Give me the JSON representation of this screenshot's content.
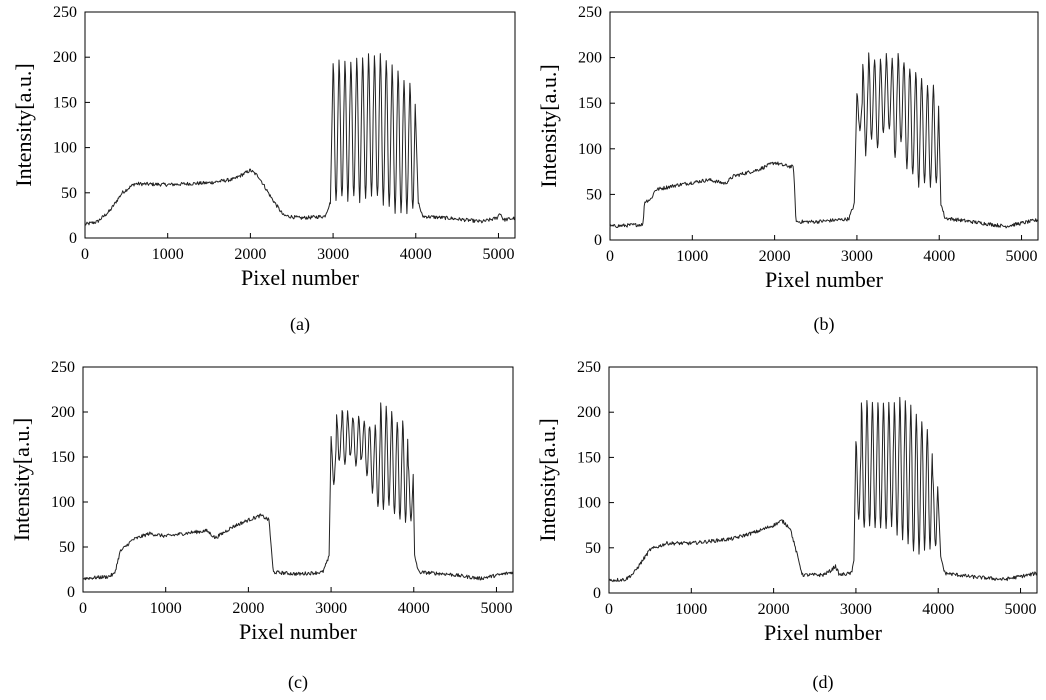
{
  "chart_data": [
    {
      "type": "line",
      "caption": "(a)",
      "xlabel": "Pixel number",
      "ylabel": "Intensity[a.u.]",
      "xlim": [
        0,
        5200
      ],
      "ylim": [
        0,
        250
      ],
      "xticks": [
        0,
        1000,
        2000,
        3000,
        4000,
        5000
      ],
      "yticks": [
        0,
        50,
        100,
        150,
        200,
        250
      ],
      "grid": false,
      "series": [
        {
          "color": "#222222",
          "envelope": [
            [
              0,
              15
            ],
            [
              150,
              18
            ],
            [
              300,
              30
            ],
            [
              450,
              50
            ],
            [
              600,
              60
            ],
            [
              1000,
              59
            ],
            [
              1500,
              61
            ],
            [
              1800,
              65
            ],
            [
              2000,
              75
            ],
            [
              2100,
              68
            ],
            [
              2250,
              45
            ],
            [
              2400,
              25
            ],
            [
              2600,
              22
            ],
            [
              2900,
              24
            ],
            [
              2970,
              40
            ]
          ],
          "tail": [
            [
              4030,
              40
            ],
            [
              4080,
              24
            ],
            [
              4400,
              22
            ],
            [
              4800,
              18
            ],
            [
              4980,
              22
            ],
            [
              5020,
              28
            ],
            [
              5060,
              20
            ],
            [
              5200,
              22
            ]
          ],
          "fringes": {
            "start": 3000,
            "end": 4000,
            "count": 14,
            "peaks": [
              193,
              195,
              196,
              197,
              199,
              200,
              201,
              201,
              206,
              198,
              190,
              185,
              175,
              172
            ],
            "troughs": [
              42,
              45,
              43,
              44,
              42,
              44,
              46,
              45,
              38,
              34,
              30,
              30
            ]
          }
        }
      ]
    },
    {
      "type": "line",
      "caption": "(b)",
      "xlabel": "Pixel number",
      "ylabel": "Intensity[a.u.]",
      "xlim": [
        0,
        5200
      ],
      "ylim": [
        0,
        250
      ],
      "xticks": [
        0,
        1000,
        2000,
        3000,
        4000,
        5000
      ],
      "yticks": [
        0,
        50,
        100,
        150,
        200,
        250
      ],
      "grid": false,
      "series": [
        {
          "color": "#222222",
          "envelope": [
            [
              0,
              15
            ],
            [
              200,
              16
            ],
            [
              400,
              17
            ],
            [
              420,
              42
            ],
            [
              500,
              45
            ],
            [
              550,
              55
            ],
            [
              800,
              60
            ],
            [
              1200,
              66
            ],
            [
              1400,
              62
            ],
            [
              1500,
              70
            ],
            [
              1800,
              77
            ],
            [
              2000,
              85
            ],
            [
              2100,
              82
            ],
            [
              2230,
              80
            ],
            [
              2260,
              20
            ],
            [
              2500,
              20
            ],
            [
              2900,
              23
            ],
            [
              2970,
              40
            ]
          ],
          "tail": [
            [
              4020,
              40
            ],
            [
              4070,
              24
            ],
            [
              4400,
              20
            ],
            [
              4800,
              15
            ],
            [
              5200,
              22
            ]
          ],
          "fringes": {
            "start": 3000,
            "end": 4000,
            "count": 14,
            "peaks": [
              160,
              195,
              205,
              200,
              200,
              203,
              198,
              207,
              195,
              190,
              185,
              178,
              172,
              168
            ],
            "troughs": [
              120,
              95,
              110,
              100,
              115,
              120,
              90,
              105,
              80,
              70,
              60,
              60
            ]
          }
        }
      ]
    },
    {
      "type": "line",
      "caption": "(c)",
      "xlabel": "Pixel number",
      "ylabel": "Intensity[a.u.]",
      "xlim": [
        0,
        5200
      ],
      "ylim": [
        0,
        250
      ],
      "xticks": [
        0,
        1000,
        2000,
        3000,
        4000,
        5000
      ],
      "yticks": [
        0,
        50,
        100,
        150,
        200,
        250
      ],
      "grid": false,
      "series": [
        {
          "color": "#222222",
          "envelope": [
            [
              0,
              15
            ],
            [
              300,
              17
            ],
            [
              380,
              20
            ],
            [
              450,
              45
            ],
            [
              600,
              58
            ],
            [
              800,
              65
            ],
            [
              1000,
              62
            ],
            [
              1300,
              66
            ],
            [
              1500,
              68
            ],
            [
              1600,
              60
            ],
            [
              1800,
              72
            ],
            [
              2000,
              80
            ],
            [
              2150,
              85
            ],
            [
              2250,
              80
            ],
            [
              2300,
              22
            ],
            [
              2600,
              20
            ],
            [
              2900,
              22
            ],
            [
              2980,
              40
            ]
          ],
          "tail": [
            [
              4010,
              40
            ],
            [
              4060,
              22
            ],
            [
              4400,
              20
            ],
            [
              4800,
              15
            ],
            [
              5200,
              22
            ]
          ],
          "fringes": {
            "start": 3000,
            "end": 4000,
            "count": 15,
            "peaks": [
              170,
              195,
              203,
              200,
              192,
              195,
              190,
              185,
              188,
              213,
              205,
              198,
              188,
              190,
              140
            ],
            "troughs": [
              120,
              145,
              140,
              150,
              140,
              145,
              130,
              110,
              95,
              90,
              95,
              85,
              80
            ]
          }
        }
      ]
    },
    {
      "type": "line",
      "caption": "(d)",
      "xlabel": "Pixel number",
      "ylabel": "Intensity[a.u.]",
      "xlim": [
        0,
        5200
      ],
      "ylim": [
        0,
        250
      ],
      "xticks": [
        0,
        1000,
        2000,
        3000,
        4000,
        5000
      ],
      "yticks": [
        0,
        50,
        100,
        150,
        200,
        250
      ],
      "grid": false,
      "series": [
        {
          "color": "#222222",
          "envelope": [
            [
              0,
              14
            ],
            [
              200,
              15
            ],
            [
              300,
              22
            ],
            [
              400,
              35
            ],
            [
              500,
              48
            ],
            [
              700,
              55
            ],
            [
              1000,
              55
            ],
            [
              1500,
              60
            ],
            [
              1800,
              68
            ],
            [
              2000,
              75
            ],
            [
              2100,
              80
            ],
            [
              2200,
              72
            ],
            [
              2350,
              20
            ],
            [
              2600,
              20
            ],
            [
              2700,
              25
            ],
            [
              2750,
              30
            ],
            [
              2800,
              20
            ],
            [
              2950,
              22
            ],
            [
              2980,
              40
            ]
          ],
          "tail": [
            [
              4030,
              40
            ],
            [
              4080,
              22
            ],
            [
              4400,
              18
            ],
            [
              4800,
              15
            ],
            [
              5100,
              20
            ],
            [
              5200,
              22
            ]
          ],
          "fringes": {
            "start": 3000,
            "end": 4000,
            "count": 15,
            "peaks": [
              170,
              210,
              215,
              210,
              212,
              210,
              208,
              212,
              215,
              212,
              205,
              198,
              190,
              180,
              130
            ],
            "troughs": [
              80,
              70,
              75,
              70,
              70,
              72,
              75,
              65,
              60,
              55,
              45,
              45,
              50
            ]
          }
        }
      ]
    }
  ]
}
